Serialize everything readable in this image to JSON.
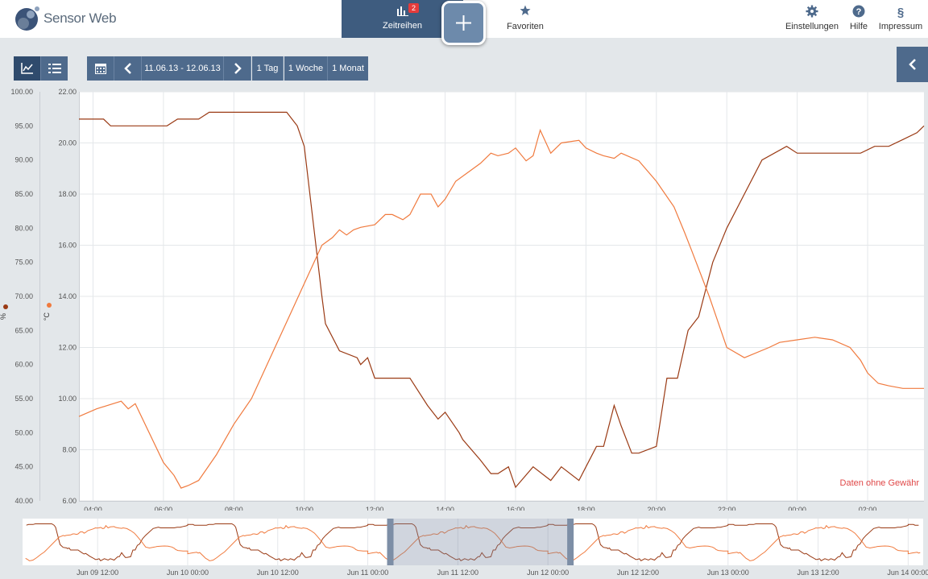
{
  "app": {
    "title": "Sensor Web"
  },
  "nav": {
    "timeseries_label": "Zeitreihen",
    "timeseries_badge": "2",
    "favorites_label": "Favoriten",
    "settings_label": "Einstellungen",
    "help_label": "Hilfe",
    "imprint_label": "Impressum"
  },
  "toolbar": {
    "date_range": "11.06.13 - 12.06.13",
    "one_day": "1 Tag",
    "one_week": "1 Woche",
    "one_month": "1 Monat"
  },
  "colors": {
    "humidity": "#9a3a14",
    "temperature": "#f07a3e",
    "nav_active": "#3e5c7f",
    "toolbar_button": "#4e6a8c",
    "disclaimer": "#e04848"
  },
  "chart_data": {
    "type": "line",
    "disclaimer": "Daten ohne Gewähr",
    "grid": true,
    "x_ticks": [
      "04:00",
      "06:00",
      "08:00",
      "10:00",
      "12:00",
      "14:00",
      "16:00",
      "18:00",
      "20:00",
      "22:00",
      "00:00",
      "02:00"
    ],
    "x_range_hours": [
      3.6,
      27.6
    ],
    "y_axes": [
      {
        "unit": "%",
        "range": [
          40,
          100
        ],
        "ticks": [
          "40.00",
          "45.00",
          "50.00",
          "55.00",
          "60.00",
          "65.00",
          "70.00",
          "75.00",
          "80.00",
          "85.00",
          "90.00",
          "95.00",
          "100.00"
        ]
      },
      {
        "unit": "°C",
        "range": [
          6,
          22
        ],
        "ticks": [
          "6.00",
          "8.00",
          "10.00",
          "12.00",
          "14.00",
          "16.00",
          "18.00",
          "20.00",
          "22.00"
        ]
      }
    ],
    "series": [
      {
        "unit": "%",
        "x": [
          3.6,
          4.3,
          4.5,
          5.0,
          6.1,
          6.4,
          6.6,
          7.0,
          7.3,
          8.5,
          9.5,
          9.8,
          10.0,
          10.5,
          10.6,
          11.0,
          11.5,
          11.6,
          11.8,
          12.0,
          12.3,
          13.0,
          13.5,
          13.8,
          14.0,
          14.4,
          14.5,
          15.0,
          15.3,
          15.5,
          15.8,
          16.0,
          16.5,
          17.0,
          17.3,
          17.8,
          18.0,
          18.3,
          18.5,
          18.8,
          19.0,
          19.3,
          19.5,
          20.0,
          20.3,
          20.6,
          20.9,
          21.2,
          21.6,
          22.0,
          23.0,
          23.7,
          24.0,
          25.0,
          25.8,
          26.2,
          26.6,
          27.0,
          27.4,
          27.6
        ],
        "values": [
          96,
          96,
          95,
          95,
          95,
          96,
          96,
          96,
          97,
          97,
          97,
          95,
          92,
          70,
          66,
          62,
          61,
          60,
          61,
          58,
          58,
          58,
          54,
          52,
          53,
          50,
          49,
          46,
          44,
          44,
          45,
          42,
          45,
          43,
          45,
          43,
          45,
          48,
          48,
          54,
          51,
          47,
          47,
          48,
          58,
          58,
          65,
          67,
          75,
          80,
          90,
          92,
          91,
          91,
          91,
          92,
          92,
          93,
          94,
          95
        ]
      },
      {
        "unit": "°C",
        "x": [
          3.6,
          4.1,
          4.8,
          5.0,
          5.2,
          6.0,
          6.3,
          6.5,
          6.7,
          7.0,
          7.5,
          8.0,
          8.5,
          9.0,
          9.5,
          10.0,
          10.5,
          10.8,
          11.0,
          11.2,
          11.4,
          11.6,
          12.0,
          12.3,
          12.5,
          12.8,
          13.0,
          13.3,
          13.6,
          13.8,
          14.0,
          14.3,
          15.0,
          15.3,
          15.5,
          15.8,
          16.0,
          16.3,
          16.5,
          16.7,
          17.0,
          17.3,
          17.8,
          18.0,
          18.3,
          18.5,
          18.8,
          19.0,
          19.5,
          20.0,
          20.5,
          20.8,
          21.0,
          21.5,
          22.0,
          22.5,
          23.2,
          23.5,
          24.0,
          24.5,
          25.0,
          25.5,
          25.8,
          26.0,
          26.3,
          26.6,
          27.0,
          27.5,
          27.6
        ],
        "values": [
          9.3,
          9.6,
          9.9,
          9.6,
          9.8,
          7.5,
          7.0,
          6.5,
          6.6,
          6.8,
          7.8,
          9.0,
          10.0,
          11.5,
          13.0,
          14.5,
          16.0,
          16.3,
          16.6,
          16.4,
          16.6,
          16.7,
          16.8,
          17.2,
          17.2,
          17.0,
          17.2,
          18.0,
          18.0,
          17.5,
          17.8,
          18.5,
          19.2,
          19.6,
          19.5,
          19.6,
          19.8,
          19.3,
          19.5,
          20.5,
          19.6,
          20.0,
          20.1,
          19.8,
          19.6,
          19.5,
          19.4,
          19.6,
          19.3,
          18.5,
          17.5,
          16.5,
          15.8,
          14.0,
          12.0,
          11.6,
          12.0,
          12.2,
          12.3,
          12.4,
          12.3,
          12.0,
          11.5,
          11.0,
          10.6,
          10.5,
          10.4,
          10.4,
          10.4
        ]
      }
    ],
    "overview": {
      "x_ticks": [
        "Jun 09 12:00",
        "Jun 10 00:00",
        "Jun 10 12:00",
        "Jun 11 00:00",
        "Jun 11 12:00",
        "Jun 12 00:00",
        "Jun 12 12:00",
        "Jun 13 00:00",
        "Jun 13 12:00",
        "Jun 14 00:00"
      ],
      "x_range_hours_from_jun09_00": [
        2.0,
        122.0
      ],
      "selection_hours_from_jun09_00": [
        51.0,
        75.0
      ]
    }
  }
}
